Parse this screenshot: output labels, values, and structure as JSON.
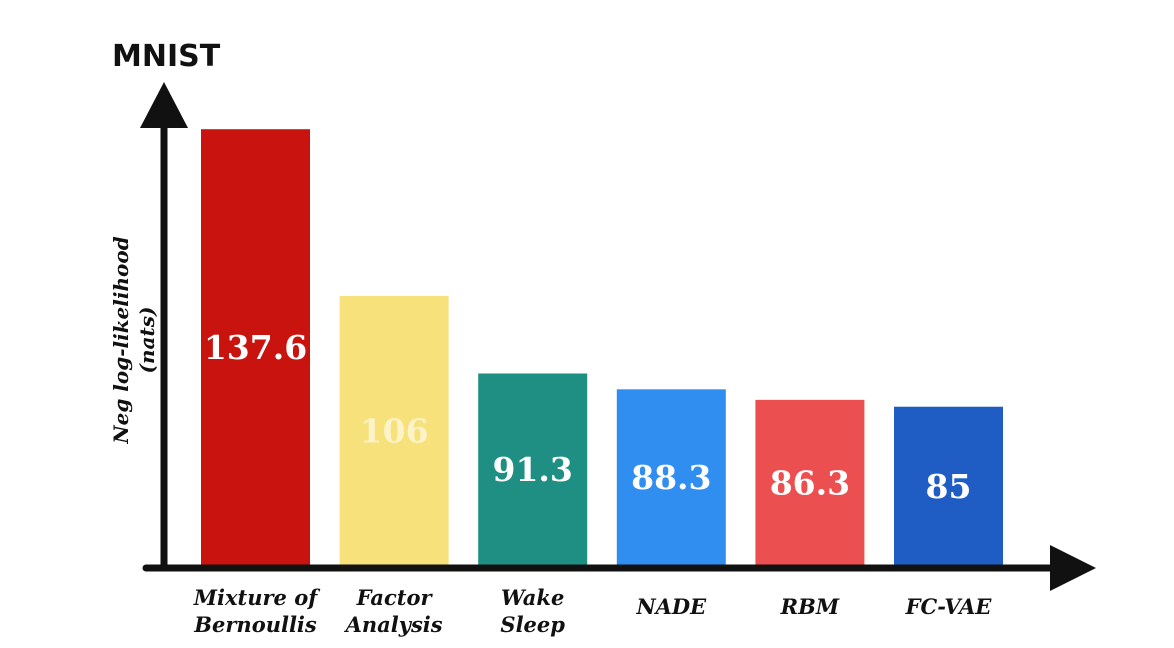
{
  "chart_data": {
    "type": "bar",
    "title": "MNIST",
    "ylabel": [
      "Neg log-likelihood",
      "(nats)"
    ],
    "xlabel": "",
    "categories": [
      [
        "Mixture of",
        "Bernoullis"
      ],
      [
        "Factor",
        "Analysis"
      ],
      [
        "Wake",
        "Sleep"
      ],
      [
        "NADE"
      ],
      [
        "RBM"
      ],
      [
        "FC-VAE"
      ]
    ],
    "values": [
      137.6,
      106,
      91.3,
      88.3,
      86.3,
      85
    ],
    "value_labels": [
      "137.6",
      "106",
      "91.3",
      "88.3",
      "86.3",
      "85"
    ],
    "bar_colors": [
      "#c8130f",
      "#f6e17a",
      "#1e8f82",
      "#2f8ef0",
      "#ec4f4f",
      "#1f5dc4"
    ],
    "label_colors": [
      "#ffffff",
      "#fdf3c8",
      "#ffffff",
      "#ffffff",
      "#ffffff",
      "#ffffff"
    ],
    "ylim": [
      55,
      142
    ],
    "grid": false,
    "legend": "none"
  }
}
